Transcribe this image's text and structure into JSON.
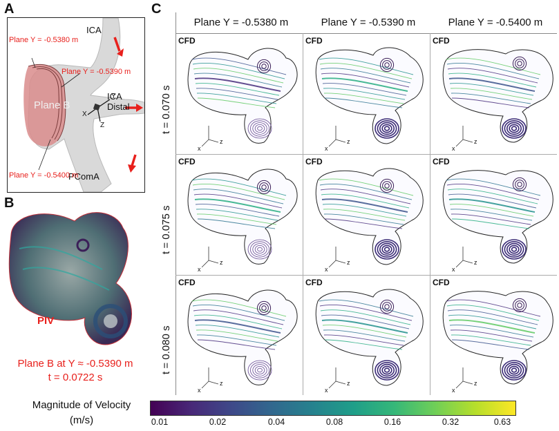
{
  "panels": {
    "a_letter": "A",
    "b_letter": "B",
    "c_letter": "C"
  },
  "panel_a": {
    "ica": "ICA",
    "ica_distal": "ICA Distal",
    "pcoma": "PComA",
    "plane_b": "Plane B",
    "plane_1": "Plane Y = -0.5380 m",
    "plane_2": "Plane Y = -0.5390 m",
    "plane_3": "Plane Y = -0.5400 m",
    "axis_x": "X",
    "axis_y": "Y",
    "axis_z": "Z"
  },
  "panel_b": {
    "piv": "PIV",
    "caption_line1": "Plane B at Y ≈ -0.5390 m",
    "caption_line2": "t = 0.0722 s"
  },
  "panel_c": {
    "columns": [
      "Plane Y = -0.5380 m",
      "Plane Y = -0.5390 m",
      "Plane Y = -0.5400 m"
    ],
    "rows": [
      "t = 0.070 s",
      "t = 0.075 s",
      "t = 0.080 s"
    ],
    "cell_tag": "CFD",
    "axis_x": "x",
    "axis_z": "z"
  },
  "colorbar": {
    "title_line1": "Magnitude of Velocity",
    "title_line2": "(m/s)",
    "ticks": [
      "0.01",
      "0.02",
      "0.04",
      "0.08",
      "0.16",
      "0.32",
      "0.63"
    ]
  },
  "colors": {
    "accent_red": "#e8201c",
    "viridis_start": "#440154",
    "viridis_mid": "#21918c",
    "viridis_end": "#fde725"
  }
}
